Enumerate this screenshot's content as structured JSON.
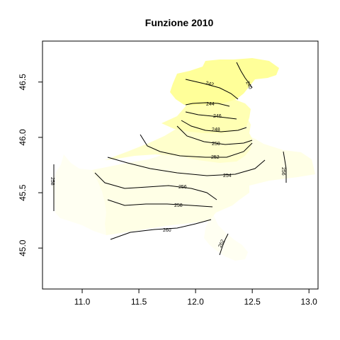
{
  "chart_data": {
    "type": "contour",
    "title": "Funzione 2010",
    "xlabel": "",
    "ylabel": "",
    "xlim": [
      10.65,
      13.08
    ],
    "ylim": [
      44.63,
      46.87
    ],
    "xticks": [
      {
        "value": 11.0,
        "label": "11.0"
      },
      {
        "value": 11.5,
        "label": "11.5"
      },
      {
        "value": 12.0,
        "label": "12.0"
      },
      {
        "value": 12.5,
        "label": "12.5"
      },
      {
        "value": 13.0,
        "label": "13.0"
      }
    ],
    "yticks": [
      {
        "value": 45.0,
        "label": "45.0"
      },
      {
        "value": 45.5,
        "label": "45.5"
      },
      {
        "value": 46.0,
        "label": "46.0"
      },
      {
        "value": 46.5,
        "label": "46.5"
      }
    ],
    "grid": false,
    "colors": {
      "high": "#ffff99",
      "mid_high": "#ffffb3",
      "mid": "#ffffcc",
      "low": "#ffffe6",
      "lowest": "#fffff2",
      "line": "#000000"
    },
    "fill_bands": [
      {
        "name": "band-north",
        "color_key": "high"
      },
      {
        "name": "band-upper",
        "color_key": "mid_high"
      },
      {
        "name": "band-middle",
        "color_key": "mid"
      },
      {
        "name": "band-lower",
        "color_key": "low"
      },
      {
        "name": "band-southern",
        "color_key": "lowest"
      }
    ],
    "contours": [
      {
        "level": "242",
        "label": "242"
      },
      {
        "level": "240",
        "label": "240"
      },
      {
        "level": "244",
        "label": "244"
      },
      {
        "level": "246",
        "label": "246"
      },
      {
        "level": "248",
        "label": "248"
      },
      {
        "level": "250",
        "label": "250"
      },
      {
        "level": "252",
        "label": "252"
      },
      {
        "level": "254",
        "label": "254"
      },
      {
        "level": "256",
        "label": "256"
      },
      {
        "level": "258",
        "label": "258"
      },
      {
        "level": "260",
        "label": "260"
      },
      {
        "level": "262",
        "label": "262"
      },
      {
        "level": "256",
        "label": "256"
      },
      {
        "level": "258",
        "label": "258"
      }
    ]
  }
}
